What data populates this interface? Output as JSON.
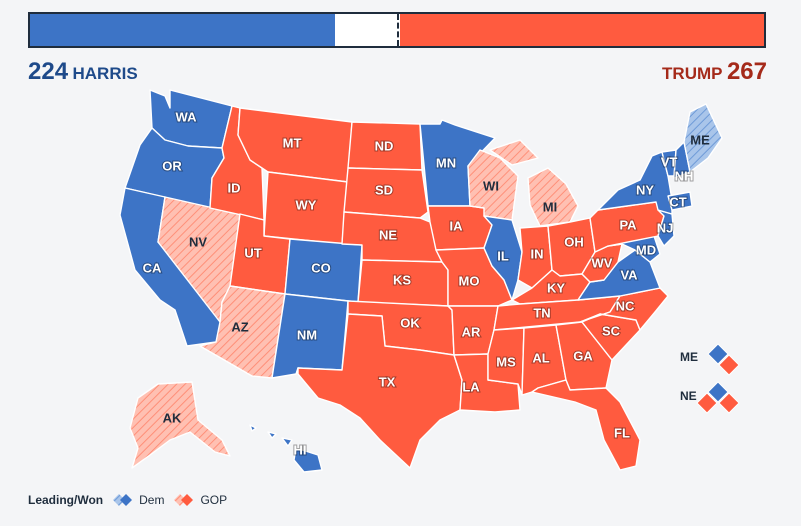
{
  "tally": {
    "dem": {
      "count": "224",
      "name": "HARRIS"
    },
    "gop": {
      "name": "TRUMP",
      "count": "267"
    }
  },
  "bar": {
    "dem_fraction": 0.416,
    "gop_fraction": 0.496
  },
  "colors": {
    "dem_won": "#3d74c6",
    "gop_won": "#ff5b3f",
    "dem_leading": "#a9c5ea",
    "gop_leading": "#ffc0b2"
  },
  "states": {
    "WA": {
      "label": "WA",
      "status": "dem"
    },
    "OR": {
      "label": "OR",
      "status": "dem"
    },
    "CA": {
      "label": "CA",
      "status": "dem"
    },
    "NV": {
      "label": "NV",
      "status": "gop-lead"
    },
    "ID": {
      "label": "ID",
      "status": "gop"
    },
    "MT": {
      "label": "MT",
      "status": "gop"
    },
    "WY": {
      "label": "WY",
      "status": "gop"
    },
    "UT": {
      "label": "UT",
      "status": "gop"
    },
    "AZ": {
      "label": "AZ",
      "status": "gop-lead"
    },
    "CO": {
      "label": "CO",
      "status": "dem"
    },
    "NM": {
      "label": "NM",
      "status": "dem"
    },
    "ND": {
      "label": "ND",
      "status": "gop"
    },
    "SD": {
      "label": "SD",
      "status": "gop"
    },
    "NE": {
      "label": "NE",
      "status": "gop"
    },
    "KS": {
      "label": "KS",
      "status": "gop"
    },
    "OK": {
      "label": "OK",
      "status": "gop"
    },
    "TX": {
      "label": "TX",
      "status": "gop"
    },
    "MN": {
      "label": "MN",
      "status": "dem"
    },
    "IA": {
      "label": "IA",
      "status": "gop"
    },
    "MO": {
      "label": "MO",
      "status": "gop"
    },
    "AR": {
      "label": "AR",
      "status": "gop"
    },
    "LA": {
      "label": "LA",
      "status": "gop"
    },
    "WI": {
      "label": "WI",
      "status": "gop-lead"
    },
    "IL": {
      "label": "IL",
      "status": "dem"
    },
    "MI": {
      "label": "MI",
      "status": "gop-lead"
    },
    "IN": {
      "label": "IN",
      "status": "gop"
    },
    "OH": {
      "label": "OH",
      "status": "gop"
    },
    "KY": {
      "label": "KY",
      "status": "gop"
    },
    "TN": {
      "label": "TN",
      "status": "gop"
    },
    "MS": {
      "label": "MS",
      "status": "gop"
    },
    "AL": {
      "label": "AL",
      "status": "gop"
    },
    "GA": {
      "label": "GA",
      "status": "gop"
    },
    "FL": {
      "label": "FL",
      "status": "gop"
    },
    "SC": {
      "label": "SC",
      "status": "gop"
    },
    "NC": {
      "label": "NC",
      "status": "gop"
    },
    "VA": {
      "label": "VA",
      "status": "dem"
    },
    "WV": {
      "label": "WV",
      "status": "gop"
    },
    "MD": {
      "label": "MD",
      "status": "dem"
    },
    "PA": {
      "label": "PA",
      "status": "gop"
    },
    "NY": {
      "label": "NY",
      "status": "dem"
    },
    "NJ": {
      "label": "NJ",
      "status": "dem"
    },
    "CT": {
      "label": "CT",
      "status": "dem"
    },
    "NH": {
      "label": "NH",
      "status": "dem"
    },
    "VT": {
      "label": "VT",
      "status": "dem"
    },
    "ME": {
      "label": "ME",
      "status": "dem-lead"
    },
    "AK": {
      "label": "AK",
      "status": "gop-lead"
    },
    "HI": {
      "label": "HI",
      "status": "dem"
    }
  },
  "split_states": {
    "ME": {
      "label": "ME"
    },
    "NE": {
      "label": "NE"
    }
  },
  "legend": {
    "title": "Leading/Won",
    "dem": "Dem",
    "gop": "GOP"
  }
}
